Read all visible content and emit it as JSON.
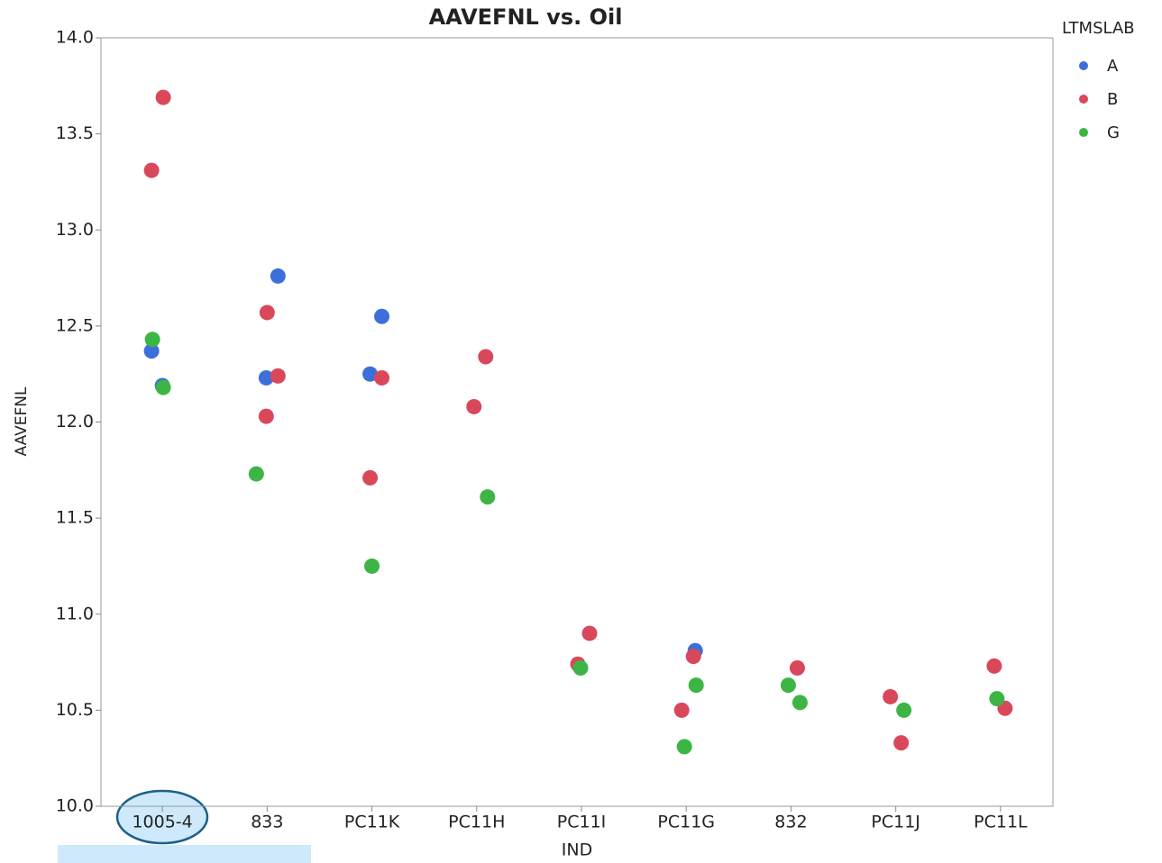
{
  "chart_data": {
    "type": "scatter",
    "title": "AAVEFNL vs. Oil",
    "x_label": "IND",
    "y_label": "AAVEFNL",
    "legend_title": "LTMSLAB",
    "categories": [
      "1005-4",
      "833",
      "PC11K",
      "PC11H",
      "PC11I",
      "PC11G",
      "832",
      "PC11J",
      "PC11L"
    ],
    "ylim": [
      10,
      14
    ],
    "yticks": [
      {
        "value": 10,
        "label": "10.0"
      },
      10.5,
      {
        "value": 11,
        "label": "11.0"
      },
      11.5,
      {
        "value": 12,
        "label": "12.0"
      },
      12.5,
      {
        "value": 13,
        "label": "13.0"
      },
      13.5,
      {
        "value": 14,
        "label": "14.0"
      }
    ],
    "series": [
      {
        "name": "A",
        "color": "#3d6fdb",
        "x": [
          "1005-4",
          "1005-4",
          "833",
          "833",
          "PC11K",
          "PC11K",
          "PC11G"
        ],
        "values": [
          12.37,
          12.19,
          12.76,
          12.23,
          12.55,
          12.25,
          10.81
        ]
      },
      {
        "name": "B",
        "color": "#d9485a",
        "x": [
          "1005-4",
          "1005-4",
          "833",
          "833",
          "833",
          "PC11K",
          "PC11K",
          "PC11H",
          "PC11H",
          "PC11I",
          "PC11I",
          "PC11G",
          "PC11G",
          "832",
          "PC11J",
          "PC11J",
          "PC11L",
          "PC11L"
        ],
        "values": [
          13.69,
          13.31,
          12.57,
          12.24,
          12.03,
          12.23,
          11.71,
          12.34,
          12.08,
          10.9,
          10.74,
          10.78,
          10.5,
          10.72,
          10.57,
          10.33,
          10.73,
          10.51
        ]
      },
      {
        "name": "G",
        "color": "#3cb545",
        "x": [
          "1005-4",
          "1005-4",
          "833",
          "PC11K",
          "PC11H",
          "PC11I",
          "PC11G",
          "PC11G",
          "832",
          "832",
          "PC11J",
          "PC11L"
        ],
        "values": [
          12.43,
          12.18,
          11.73,
          11.25,
          11.61,
          10.72,
          10.63,
          10.31,
          10.54,
          10.63,
          10.5,
          10.56
        ]
      }
    ]
  }
}
